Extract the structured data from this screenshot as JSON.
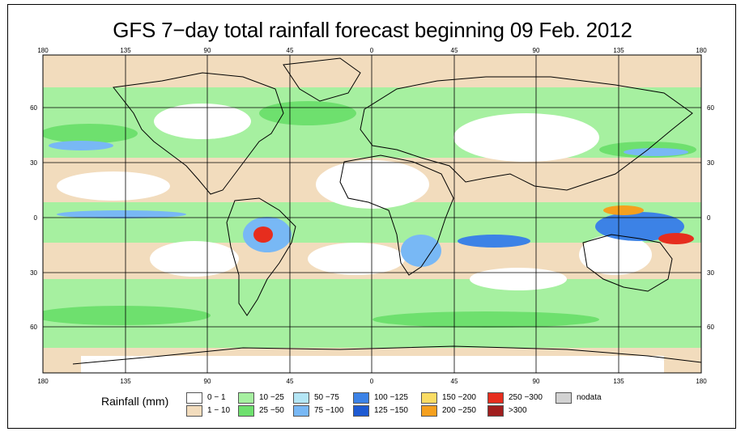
{
  "title": "GFS 7−day total rainfall forecast beginning 09 Feb. 2012",
  "map": {
    "top_longitude_labels": [
      "180",
      "135",
      "90",
      "45",
      "0",
      "45",
      "90",
      "135",
      "180"
    ],
    "bottom_longitude_labels": [
      "180",
      "135",
      "90",
      "45",
      "0",
      "45",
      "90",
      "135",
      "180"
    ],
    "left_latitude_labels": [
      "60",
      "30",
      "0",
      "30",
      "60"
    ],
    "right_latitude_labels": [
      "60",
      "30",
      "0",
      "30",
      "60"
    ],
    "colors": {
      "ocean_dry": "#ffffff",
      "land_dry": "#f2dcbd",
      "light_rain": "#7ee87e",
      "moderate_rain": "#55d855",
      "heavy": "#1e64e6",
      "extreme": "#e6322a",
      "coastline": "#000000"
    }
  },
  "legend": {
    "title": "Rainfall (mm)",
    "items": [
      {
        "label": "0 − 1",
        "color": "#ffffff"
      },
      {
        "label": "1 − 10",
        "color": "#f2dcbd"
      },
      {
        "label": "10 −25",
        "color": "#a6f0a0"
      },
      {
        "label": "25 −50",
        "color": "#6ee06e"
      },
      {
        "label": "50 −75",
        "color": "#b4e6f5"
      },
      {
        "label": "75 −100",
        "color": "#78b8f5"
      },
      {
        "label": "100 −125",
        "color": "#3c82e6"
      },
      {
        "label": "125 −150",
        "color": "#1e5ad2"
      },
      {
        "label": "150 −200",
        "color": "#fadc64"
      },
      {
        "label": "200 −250",
        "color": "#f5a01e"
      },
      {
        "label": "250 −300",
        "color": "#e62d1e"
      },
      {
        "label": ">300",
        "color": "#a01e1e"
      },
      {
        "label": "nodata",
        "color": "#d2d2d2"
      }
    ]
  }
}
